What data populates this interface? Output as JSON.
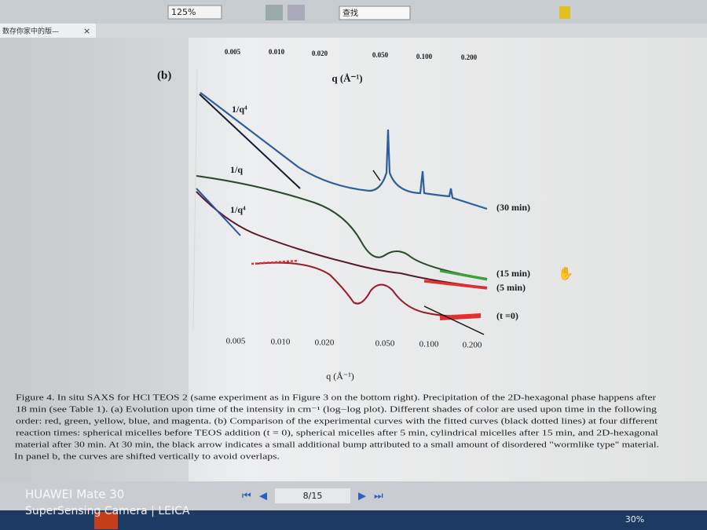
{
  "toolbar": {
    "zoom": "125%",
    "search": "查找"
  },
  "tab": {
    "title": "数存你家中的版—"
  },
  "figure": {
    "panel": "(b)",
    "top_axis_ticks": [
      "0.005",
      "0.010",
      "0.020",
      "0.050",
      "0.100",
      "0.200"
    ],
    "top_axis_label": "q (Å⁻¹)",
    "annotations": [
      "1/q⁴",
      "1/q",
      "1/q⁴"
    ],
    "curve_labels": [
      "(30 min)",
      "(15 min)",
      "(5 min)",
      "(t =0)"
    ],
    "bottom_axis_ticks": [
      "0.005",
      "0.010",
      "0.020",
      "0.050",
      "0.100",
      "0.200"
    ],
    "bottom_axis_label": "q (Å⁻¹)"
  },
  "caption": [
    "Figure 4. In situ SAXS for HCl TEOS 2 (same experiment as in Figure 3 on the bottom right). Precipitation of the 2D-hexagonal phase happens after",
    "18 min (see Table 1). (a) Evolution upon time of the intensity in cm⁻¹ (log−log plot). Different shades of color are used upon time in the following",
    "order: red, green, yellow, blue, and magenta. (b) Comparison of the experimental curves with the fitted curves (black dotted lines) at four different",
    "reaction times: spherical micelles before TEOS addition (t = 0), spherical micelles after 5 min, cylindrical micelles after 15 min, and 2D-hexagonal",
    "material after 30 min. At 30 min, the black arrow indicates a small additional bump attributed to a small amount of disordered \"wormlike type\" material.",
    "In panel b, the curves are shifted vertically to avoid overlaps."
  ],
  "pager": {
    "page": "8/15"
  },
  "watermark": [
    "HUAWEI Mate 30",
    "SuperSensing Camera | LEICA"
  ],
  "taskbar": {
    "battery": "30%"
  }
}
